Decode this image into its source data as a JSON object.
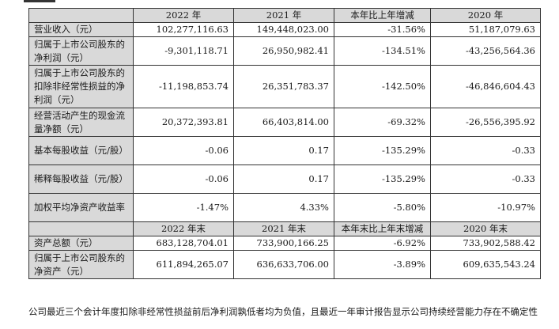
{
  "header": {
    "row1": [
      "",
      "2022 年",
      "2021 年",
      "本年比上年增减",
      "2020 年"
    ],
    "row2": [
      "",
      "2022 年末",
      "2021 年末",
      "本年末比上年末增减",
      "2020 年末"
    ]
  },
  "rows": [
    {
      "label": "营业收入（元）",
      "v2022": "102,277,116.63",
      "v2021": "149,448,023.00",
      "change": "-31.56%",
      "v2020": "51,187,079.63"
    },
    {
      "label": "归属于上市公司股东的净利润（元）",
      "v2022": "-9,301,118.71",
      "v2021": "26,950,982.41",
      "change": "-134.51%",
      "v2020": "-43,256,564.36"
    },
    {
      "label": "归属于上市公司股东的扣除非经常性损益的净利润（元）",
      "v2022": "-11,198,853.74",
      "v2021": "26,351,783.37",
      "change": "-142.50%",
      "v2020": "-46,846,604.43"
    },
    {
      "label": "经营活动产生的现金流量净额（元）",
      "v2022": "20,372,393.81",
      "v2021": "66,403,814.00",
      "change": "-69.32%",
      "v2020": "-26,556,395.92"
    },
    {
      "label": "基本每股收益（元/股）",
      "v2022": "-0.06",
      "v2021": "0.17",
      "change": "-135.29%",
      "v2020": "-0.33"
    },
    {
      "label": "稀释每股收益（元/股）",
      "v2022": "-0.06",
      "v2021": "0.17",
      "change": "-135.29%",
      "v2020": "-0.33"
    },
    {
      "label": "加权平均净资产收益率",
      "v2022": "-1.47%",
      "v2021": "4.33%",
      "change": "-5.80%",
      "v2020": "-10.97%"
    }
  ],
  "rows_end": [
    {
      "label": "资产总额（元）",
      "v2022": "683,128,704.01",
      "v2021": "733,900,166.25",
      "change": "-6.92%",
      "v2020": "733,902,588.42"
    },
    {
      "label": "归属于上市公司股东的净资产（元）",
      "v2022": "611,894,265.07",
      "v2021": "636,633,706.00",
      "change": "-3.89%",
      "v2020": "609,635,543.24"
    }
  ],
  "note": "公司最近三个会计年度扣除非经常性损益前后净利润孰低者均为负值，且最近一年审计报告显示公司持续经营能力存在不确定性"
}
